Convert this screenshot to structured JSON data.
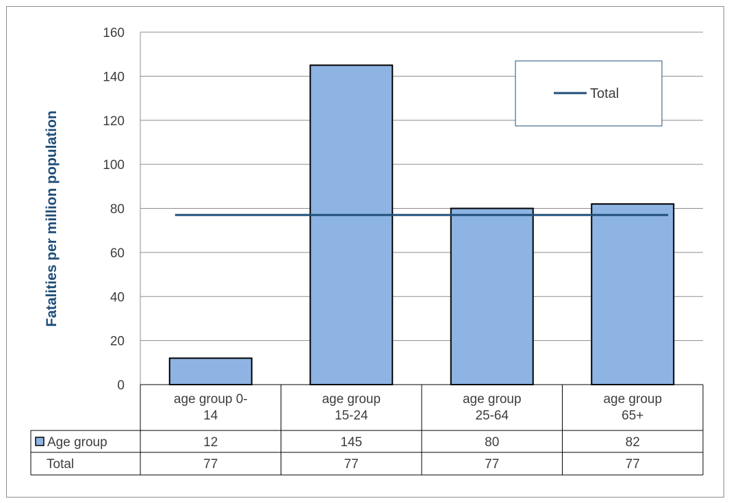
{
  "chart_data": {
    "type": "bar",
    "ylabel": "Fatalities per million population",
    "ylim": [
      0,
      160
    ],
    "yticks": [
      0,
      20,
      40,
      60,
      80,
      100,
      120,
      140,
      160
    ],
    "grid": true,
    "legend": "top-right",
    "categories": [
      "age group 0-14",
      "age group 15-24",
      "age group 25-64",
      "age group 65+"
    ],
    "category_lines": [
      [
        "age group 0-",
        "14"
      ],
      [
        "age group",
        "15-24"
      ],
      [
        "age group",
        "25-64"
      ],
      [
        "age group",
        "65+"
      ]
    ],
    "series": [
      {
        "name": "Age group",
        "type": "bar",
        "values": [
          12,
          145,
          80,
          82
        ],
        "color": "#8eb4e3"
      },
      {
        "name": "Total",
        "type": "line",
        "values": [
          77,
          77,
          77,
          77
        ],
        "color": "#1f4e79"
      }
    ],
    "table": {
      "rows": [
        {
          "label": "Age group",
          "values": [
            "12",
            "145",
            "80",
            "82"
          ]
        },
        {
          "label": "Total",
          "values": [
            "77",
            "77",
            "77",
            "77"
          ]
        }
      ]
    }
  }
}
